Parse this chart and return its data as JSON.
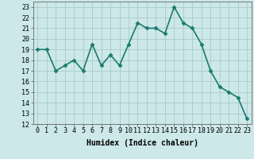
{
  "x": [
    0,
    1,
    2,
    3,
    4,
    5,
    6,
    7,
    8,
    9,
    10,
    11,
    12,
    13,
    14,
    15,
    16,
    17,
    18,
    19,
    20,
    21,
    22,
    23
  ],
  "y": [
    19.0,
    19.0,
    17.0,
    17.5,
    18.0,
    17.0,
    19.5,
    17.5,
    18.5,
    17.5,
    19.5,
    21.5,
    21.0,
    21.0,
    20.5,
    23.0,
    21.5,
    21.0,
    19.5,
    17.0,
    15.5,
    15.0,
    14.5,
    12.5
  ],
  "line_color": "#1a7a6e",
  "marker": "D",
  "marker_size": 2.5,
  "bg_color": "#cce8e8",
  "grid_color": "#aacaca",
  "xlabel": "Humidex (Indice chaleur)",
  "xlim": [
    -0.5,
    23.5
  ],
  "ylim": [
    12,
    23.5
  ],
  "yticks": [
    12,
    13,
    14,
    15,
    16,
    17,
    18,
    19,
    20,
    21,
    22,
    23
  ],
  "xticks": [
    0,
    1,
    2,
    3,
    4,
    5,
    6,
    7,
    8,
    9,
    10,
    11,
    12,
    13,
    14,
    15,
    16,
    17,
    18,
    19,
    20,
    21,
    22,
    23
  ],
  "xlabel_fontsize": 7,
  "tick_fontsize": 6,
  "line_width": 1.2
}
